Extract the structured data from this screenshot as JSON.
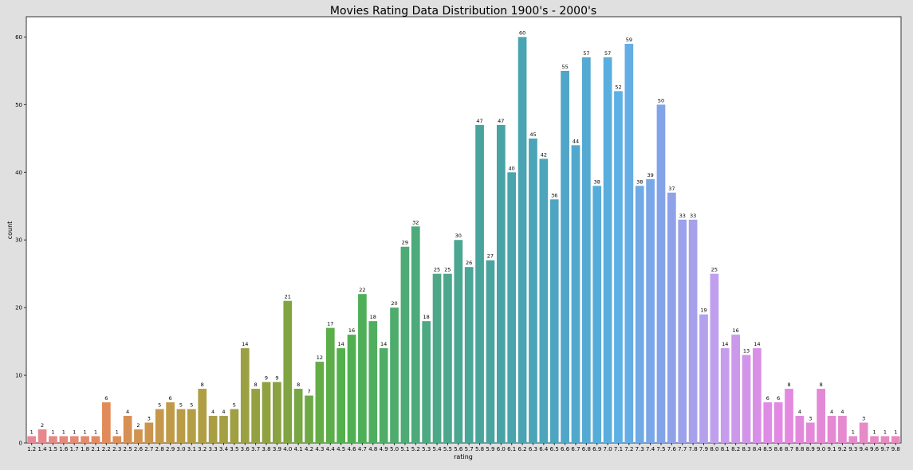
{
  "chart_data": {
    "type": "bar",
    "title": "Movies Rating Data Distribution 1900's - 2000's",
    "xlabel": "rating",
    "ylabel": "count",
    "ylim": [
      0,
      63
    ],
    "yticks": [
      0,
      10,
      20,
      30,
      40,
      50,
      60
    ],
    "grid": false,
    "legend": "none",
    "categories": [
      "1.2",
      "1.4",
      "1.5",
      "1.6",
      "1.7",
      "1.8",
      "2.1",
      "2.2",
      "2.3",
      "2.5",
      "2.6",
      "2.7",
      "2.8",
      "2.9",
      "3.0",
      "3.1",
      "3.2",
      "3.3",
      "3.4",
      "3.5",
      "3.6",
      "3.7",
      "3.8",
      "3.9",
      "4.0",
      "4.1",
      "4.2",
      "4.3",
      "4.4",
      "4.5",
      "4.6",
      "4.7",
      "4.8",
      "4.9",
      "5.0",
      "5.1",
      "5.2",
      "5.3",
      "5.4",
      "5.5",
      "5.6",
      "5.7",
      "5.8",
      "5.9",
      "6.0",
      "6.1",
      "6.2",
      "6.3",
      "6.4",
      "6.5",
      "6.6",
      "6.7",
      "6.8",
      "6.9",
      "7.0",
      "7.1",
      "7.2",
      "7.3",
      "7.4",
      "7.5",
      "7.6",
      "7.7",
      "7.8",
      "7.9",
      "8.0",
      "8.1",
      "8.2",
      "8.3",
      "8.4",
      "8.5",
      "8.6",
      "8.7",
      "8.8",
      "8.9",
      "9.0",
      "9.1",
      "9.2",
      "9.3",
      "9.4",
      "9.6",
      "9.7",
      "9.8"
    ],
    "values": [
      1,
      2,
      1,
      1,
      1,
      1,
      1,
      6,
      1,
      4,
      2,
      3,
      5,
      6,
      5,
      5,
      8,
      4,
      4,
      5,
      14,
      8,
      9,
      9,
      21,
      8,
      7,
      12,
      17,
      14,
      16,
      22,
      18,
      14,
      20,
      29,
      32,
      18,
      25,
      25,
      30,
      26,
      47,
      27,
      47,
      40,
      60,
      45,
      42,
      36,
      55,
      44,
      57,
      38,
      57,
      52,
      59,
      38,
      39,
      50,
      37,
      33,
      33,
      19,
      25,
      14,
      16,
      13,
      14,
      6,
      6,
      8,
      4,
      3,
      8,
      4,
      4,
      1,
      3,
      1,
      1,
      1
    ]
  }
}
